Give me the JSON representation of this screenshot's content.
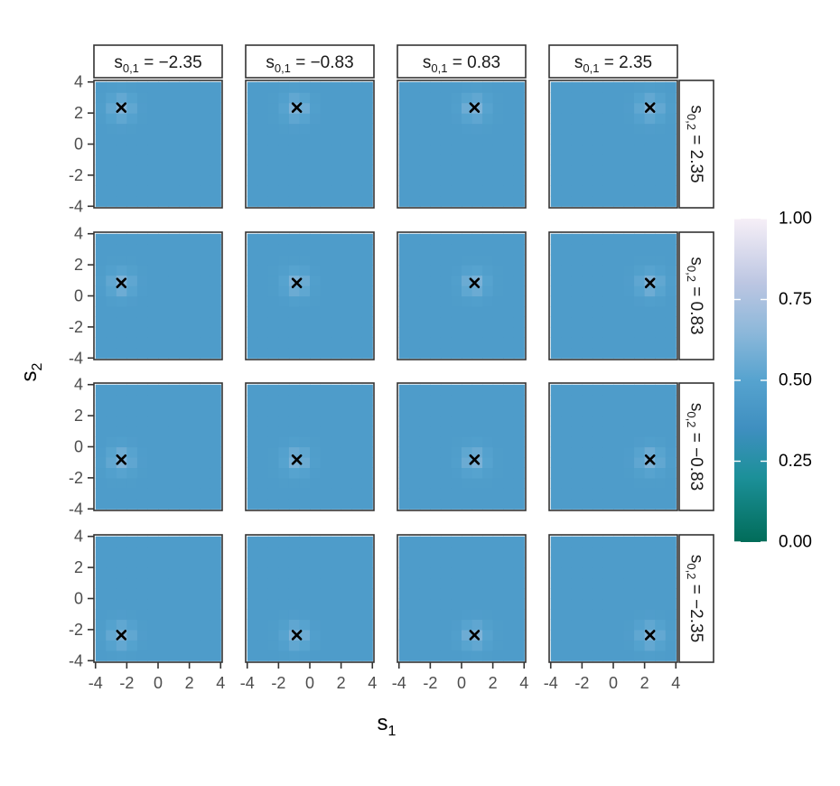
{
  "chart_data": {
    "type": "heatmap",
    "layout": "facet-grid",
    "xlabel": "s",
    "xlabel_sub": "1",
    "ylabel": "s",
    "ylabel_sub": "2",
    "xlim": [
      -4.1,
      4.1
    ],
    "ylim": [
      -4.1,
      4.1
    ],
    "x_ticks": [
      -4,
      -2,
      0,
      2,
      4
    ],
    "y_ticks": [
      -4,
      -2,
      0,
      2,
      4
    ],
    "x_tick_labels": [
      "-4",
      "-2",
      "0",
      "2",
      "4"
    ],
    "y_tick_labels": [
      "-4",
      "-2",
      "0",
      "2",
      "4"
    ],
    "col_facets": [
      {
        "value": -2.35,
        "label_base": "s",
        "label_sub": "0,1",
        "label_rest": " = −2.35"
      },
      {
        "value": -0.83,
        "label_base": "s",
        "label_sub": "0,1",
        "label_rest": " = −0.83"
      },
      {
        "value": 0.83,
        "label_base": "s",
        "label_sub": "0,1",
        "label_rest": " = 0.83"
      },
      {
        "value": 2.35,
        "label_base": "s",
        "label_sub": "0,1",
        "label_rest": " = 2.35"
      }
    ],
    "row_facets": [
      {
        "value": 2.35,
        "label_base": "s",
        "label_sub": "0,2",
        "label_rest": " = 2.35"
      },
      {
        "value": 0.83,
        "label_base": "s",
        "label_sub": "0,2",
        "label_rest": " = 0.83"
      },
      {
        "value": -0.83,
        "label_base": "s",
        "label_sub": "0,2",
        "label_rest": " = −0.83"
      },
      {
        "value": -2.35,
        "label_base": "s",
        "label_sub": "0,2",
        "label_rest": " = −2.35"
      }
    ],
    "field": {
      "base_value": 0.45,
      "peak_value": 0.62,
      "peak_spread": 0.55
    },
    "colorbar": {
      "limits": [
        0,
        1
      ],
      "ticks": [
        0,
        0.25,
        0.5,
        0.75,
        1
      ],
      "tick_labels": [
        "0.00",
        "0.25",
        "0.50",
        "0.75",
        "1.00"
      ],
      "stops": [
        {
          "v": 0.0,
          "color": "#016c59"
        },
        {
          "v": 0.2,
          "color": "#1c9099"
        },
        {
          "v": 0.35,
          "color": "#3f8fc0"
        },
        {
          "v": 0.5,
          "color": "#56a3cf"
        },
        {
          "v": 0.65,
          "color": "#8db8da"
        },
        {
          "v": 0.8,
          "color": "#bcc6e2"
        },
        {
          "v": 1.0,
          "color": "#f6eff7"
        }
      ]
    },
    "marker": {
      "symbol": "x",
      "color": "#000000"
    },
    "grid": false,
    "legend_position": "right"
  }
}
